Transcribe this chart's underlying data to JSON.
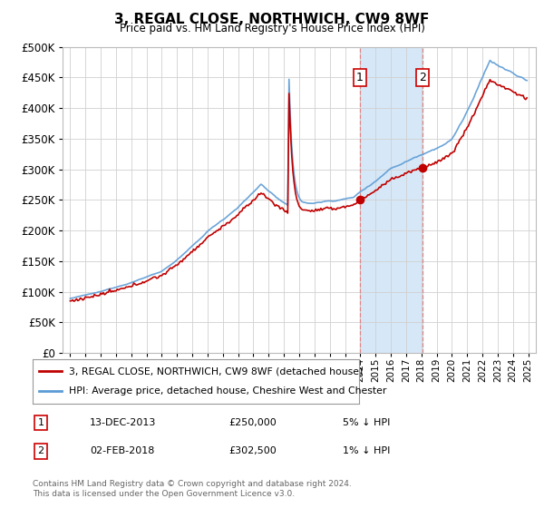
{
  "title": "3, REGAL CLOSE, NORTHWICH, CW9 8WF",
  "subtitle": "Price paid vs. HM Land Registry's House Price Index (HPI)",
  "ylim": [
    0,
    500000
  ],
  "yticks": [
    0,
    50000,
    100000,
    150000,
    200000,
    250000,
    300000,
    350000,
    400000,
    450000,
    500000
  ],
  "hpi_color": "#5b9bd5",
  "price_color": "#c00000",
  "background_color": "#ffffff",
  "grid_color": "#d0d0d0",
  "sale1": {
    "date_num": 2013.96,
    "price": 250000,
    "label": "1"
  },
  "sale2": {
    "date_num": 2018.09,
    "price": 302500,
    "label": "2"
  },
  "highlight_start": 2013.96,
  "highlight_end": 2018.09,
  "legend_entries": [
    "3, REGAL CLOSE, NORTHWICH, CW9 8WF (detached house)",
    "HPI: Average price, detached house, Cheshire West and Chester"
  ],
  "annotation1": [
    "1",
    "13-DEC-2013",
    "£250,000",
    "5% ↓ HPI"
  ],
  "annotation2": [
    "2",
    "02-FEB-2018",
    "£302,500",
    "1% ↓ HPI"
  ],
  "footer": "Contains HM Land Registry data © Crown copyright and database right 2024.\nThis data is licensed under the Open Government Licence v3.0.",
  "xmin": 1994.5,
  "xmax": 2025.5,
  "xtick_start": 1995,
  "xtick_end": 2025
}
